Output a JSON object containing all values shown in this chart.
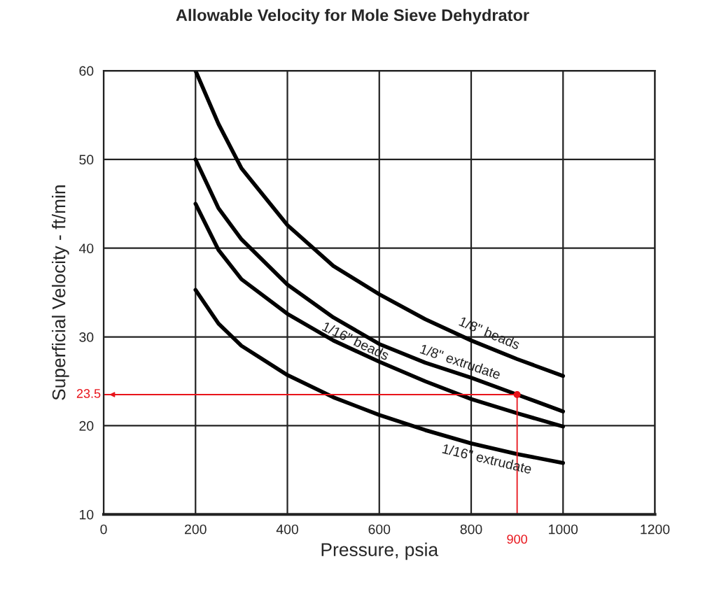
{
  "chart_data": {
    "type": "line",
    "title": "Allowable Velocity for Mole Sieve Dehydrator",
    "xlabel": "Pressure, psia",
    "ylabel": "Superficial Velocity - ft/min",
    "x": [
      200,
      250,
      300,
      400,
      500,
      600,
      700,
      800,
      900,
      1000
    ],
    "series": [
      {
        "name": "1/8\" beads",
        "color": "#000000",
        "values": [
          60,
          54,
          49,
          42.6,
          38,
          34.8,
          32,
          29.6,
          27.5,
          25.6
        ]
      },
      {
        "name": "1/8\" extrudate",
        "color": "#000000",
        "values": [
          50,
          44.5,
          41,
          35.9,
          32.2,
          29.2,
          27.1,
          25.4,
          23.5,
          21.6
        ]
      },
      {
        "name": "1/16\" beads",
        "color": "#000000",
        "values": [
          45,
          39.8,
          36.5,
          32.6,
          29.6,
          27.2,
          25,
          23,
          21.4,
          19.9
        ]
      },
      {
        "name": "1/16\" extrudate",
        "color": "#000000",
        "values": [
          35.3,
          31.5,
          29,
          25.7,
          23.2,
          21.2,
          19.5,
          18,
          16.8,
          15.8
        ]
      },
      {
        "type": "scatter",
        "marker": "circle",
        "color": "#e8141b",
        "x": [
          900
        ],
        "values": [
          23.5
        ]
      }
    ],
    "ref_lines": [
      {
        "axis": "y",
        "value": 23.5,
        "label": "23.5",
        "color": "#e8141b"
      },
      {
        "axis": "x",
        "value": 900,
        "label": "900",
        "color": "#e8141b"
      }
    ],
    "xlim": [
      0,
      1200
    ],
    "xticks": [
      0,
      200,
      400,
      600,
      800,
      1000,
      1200
    ],
    "ylim": [
      10,
      60
    ],
    "yticks": [
      10,
      20,
      30,
      40,
      50,
      60
    ],
    "grid": true,
    "marker": "none",
    "line_style": "solid"
  }
}
